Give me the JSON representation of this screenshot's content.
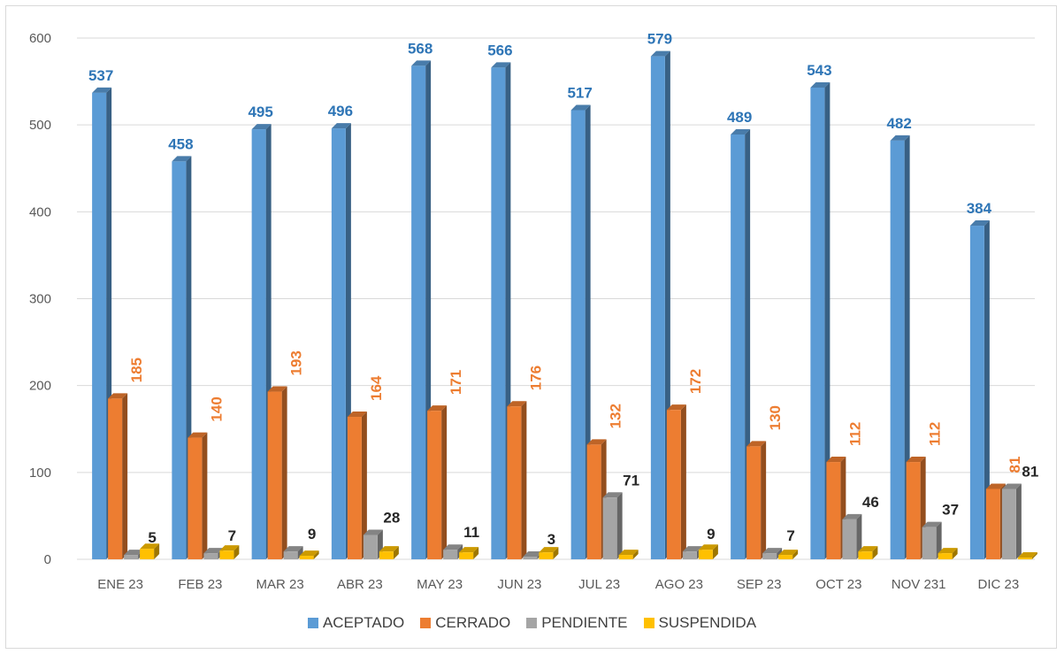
{
  "chart_data": {
    "type": "bar",
    "categories": [
      "ENE 23",
      "FEB 23",
      "MAR 23",
      "ABR 23",
      "MAY 23",
      "JUN 23",
      "JUL 23",
      "AGO 23",
      "SEP 23",
      "OCT 23",
      "NOV 231",
      "DIC 23"
    ],
    "series": [
      {
        "name": "ACEPTADO",
        "color": "#5b9bd5",
        "label_color": "#2e75b6",
        "values": [
          537,
          458,
          495,
          496,
          568,
          566,
          517,
          579,
          489,
          543,
          482,
          384
        ]
      },
      {
        "name": "CERRADO",
        "color": "#ed7d31",
        "label_color": "#ed7d31",
        "values": [
          185,
          140,
          193,
          164,
          171,
          176,
          132,
          172,
          130,
          112,
          112,
          81
        ]
      },
      {
        "name": "PENDIENTE",
        "color": "#a5a5a5",
        "label_color": "#262626",
        "values": [
          5,
          7,
          9,
          28,
          11,
          3,
          71,
          9,
          7,
          46,
          37,
          81
        ]
      },
      {
        "name": "SUSPENDIDA",
        "color": "#ffc000",
        "label_color": "#262626",
        "values": [
          12,
          10,
          4,
          9,
          8,
          8,
          5,
          11,
          5,
          9,
          7,
          2
        ]
      }
    ],
    "labeled_series": [
      "ACEPTADO",
      "CERRADO",
      "PENDIENTE"
    ],
    "ylim": [
      0,
      600
    ],
    "yticks": [
      0,
      100,
      200,
      300,
      400,
      500,
      600
    ],
    "grid": true,
    "legend": "bottom"
  }
}
